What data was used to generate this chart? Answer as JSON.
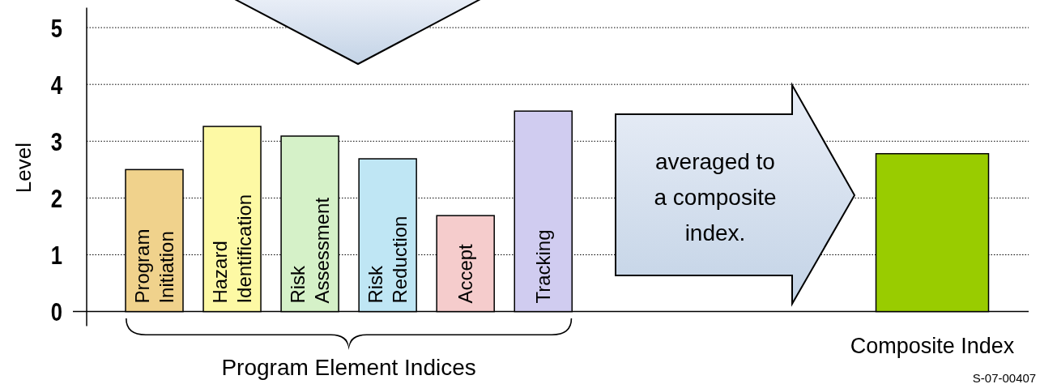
{
  "chart_data": {
    "type": "bar",
    "ylabel": "Level",
    "categories": [
      "Program Initiation",
      "Hazard Identification",
      "Risk Assessment",
      "Risk Reduction",
      "Accept",
      "Tracking",
      null,
      null,
      null,
      null,
      "Composite Index"
    ],
    "values": [
      2.5,
      3.26,
      3.09,
      2.69,
      1.69,
      3.53,
      null,
      null,
      null,
      null,
      2.78
    ],
    "colors": [
      "#f0d28c",
      "#fdf9a4",
      "#d5f1c8",
      "#bfe6f4",
      "#f5cccc",
      "#d0ccf0",
      null,
      null,
      null,
      null,
      "#99cc00"
    ],
    "ylim": [
      0,
      5.35
    ],
    "yticks": [
      0,
      1,
      2,
      3,
      4,
      5
    ],
    "grid": "y",
    "annotations": [
      "averaged to a composite index.",
      "Program Element Indices",
      "S-07-00407"
    ]
  }
}
